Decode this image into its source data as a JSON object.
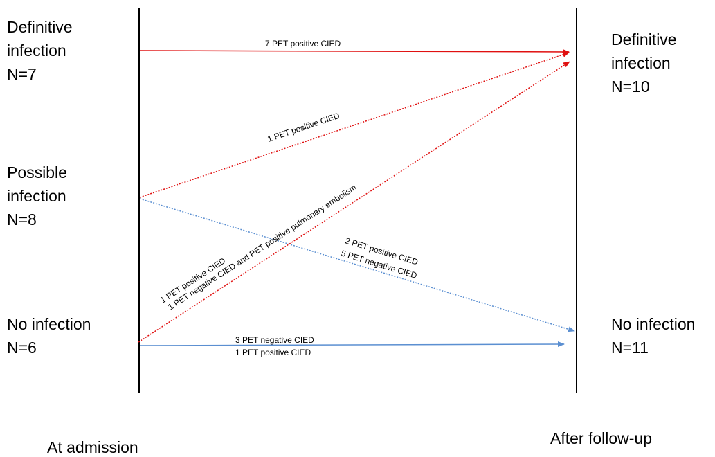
{
  "colors": {
    "infected": "#e01010",
    "not_infected": "#5b8fd1",
    "axis": "#000000"
  },
  "left_groups": [
    {
      "line1": "Definitive",
      "line2": "infection",
      "count": "N=7"
    },
    {
      "line1": "Possible",
      "line2": "infection",
      "count": "N=8"
    },
    {
      "line1": "No infection",
      "line2": "",
      "count": "N=6"
    }
  ],
  "right_groups": [
    {
      "line1": "Definitive",
      "line2": "infection",
      "count": "N=10"
    },
    {
      "line1": "No infection",
      "line2": "",
      "count": "N=11"
    }
  ],
  "footer": {
    "left": "At admission",
    "right": "After follow-up"
  },
  "transitions": [
    {
      "from": "Definitive infection",
      "to": "Definitive infection",
      "style": "solid",
      "color": "infected",
      "labels": [
        "7 PET positive CIED"
      ]
    },
    {
      "from": "Possible infection",
      "to": "Definitive infection",
      "style": "dotted",
      "color": "infected",
      "labels": [
        "1 PET positive CIED"
      ]
    },
    {
      "from": "Possible infection",
      "to": "No infection",
      "style": "dotted",
      "color": "not_infected",
      "labels": [
        "2 PET positive CIED",
        "5 PET negative CIED"
      ]
    },
    {
      "from": "No infection",
      "to": "Definitive infection",
      "style": "dotted",
      "color": "infected",
      "labels": [
        "1 PET positive CIED",
        "1 PET negative CIED and PET positive  pulmonary embolism"
      ]
    },
    {
      "from": "No infection",
      "to": "No infection",
      "style": "solid",
      "color": "not_infected",
      "labels": [
        "3 PET negative CIED",
        "1 PET positive CIED"
      ]
    }
  ]
}
